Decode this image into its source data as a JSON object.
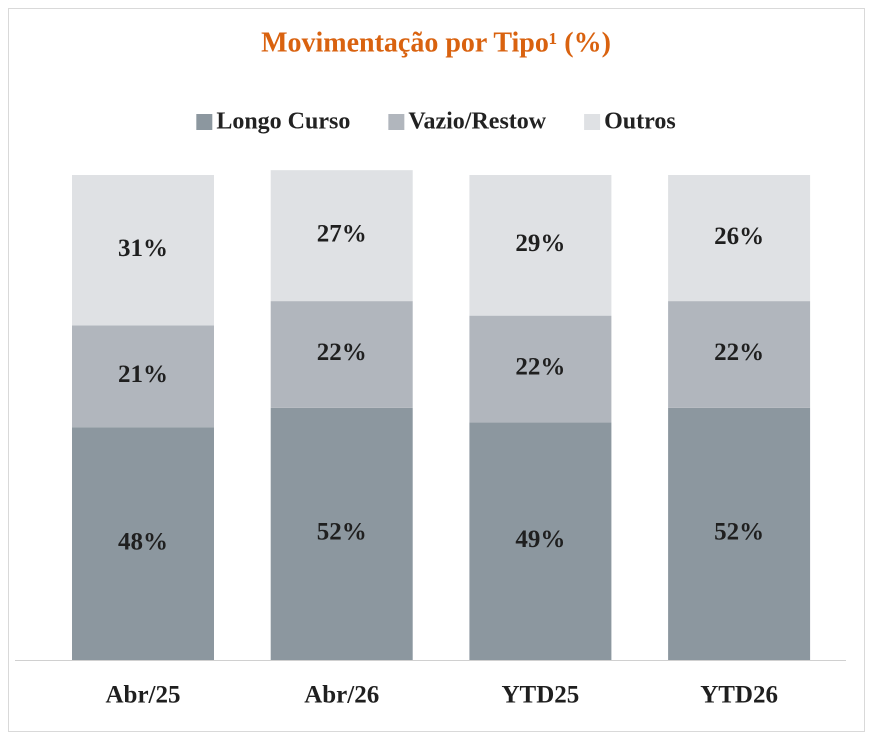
{
  "chart_data": {
    "type": "stacked_bar",
    "title": "Movimentação por Tipo¹ (%)",
    "categories": [
      "Abr/25",
      "Abr/26",
      "YTD25",
      "YTD26"
    ],
    "series": [
      {
        "name": "Longo Curso",
        "color": "#8c979f",
        "values": [
          48,
          52,
          49,
          52
        ],
        "value_labels": [
          "48%",
          "52%",
          "49%",
          "52%"
        ]
      },
      {
        "name": "Vazio/Restow",
        "color": "#b1b6bd",
        "values": [
          21,
          22,
          22,
          22
        ],
        "value_labels": [
          "21%",
          "22%",
          "22%",
          "22%"
        ]
      },
      {
        "name": "Outros",
        "color": "#dfe1e4",
        "values": [
          31,
          27,
          29,
          26
        ],
        "value_labels": [
          "31%",
          "27%",
          "29%",
          "26%"
        ]
      }
    ],
    "ylim": [
      0,
      100
    ],
    "legend": "top"
  }
}
